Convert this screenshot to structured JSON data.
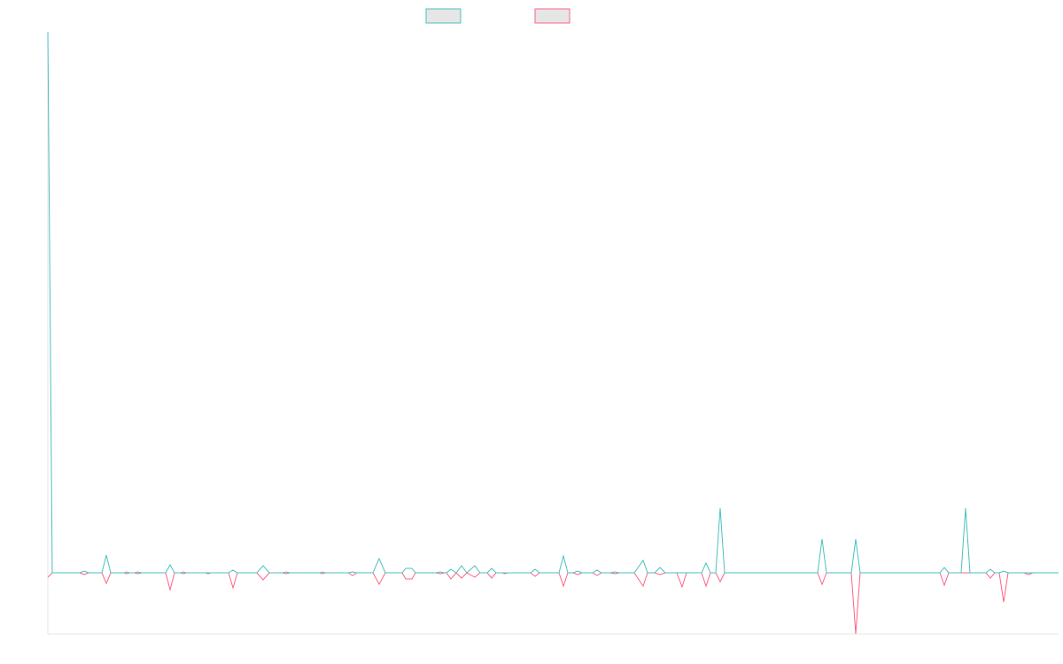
{
  "chart_data": {
    "type": "line",
    "x": [
      0,
      5,
      36,
      41,
      46,
      61,
      66,
      71,
      86,
      89,
      92,
      98,
      101,
      106,
      133,
      138,
      143,
      150,
      153,
      156,
      178,
      181,
      184,
      204,
      209,
      214,
      236,
      243,
      250,
      265,
      269,
      273,
      307,
      310,
      313,
      339,
      344,
      349,
      367,
      374,
      381,
      400,
      404,
      411,
      415,
      438,
      443,
      448,
      450,
      455,
      461,
      467,
      473,
      482,
      488,
      496,
      501,
      506,
      513,
      516,
      519,
      545,
      550,
      555,
      577,
      582,
      587,
      593,
      598,
      603,
      615,
      620,
      625,
      635,
      640,
      645,
      662,
      672,
      677,
      685,
      691,
      697,
      710,
      716,
      721,
      738,
      743,
      748,
      754,
      759,
      764,
      869,
      874,
      879,
      907,
      912,
      917,
      1007,
      1012,
      1017,
      1031,
      1036,
      1041,
      1059,
      1064,
      1069,
      1074,
      1079,
      1084,
      1102,
      1107,
      1112,
      1141
    ],
    "series": [
      {
        "color": "#4bc0c0",
        "values": [
          611,
          0,
          0,
          2,
          0,
          0,
          20,
          0,
          0,
          1,
          0,
          0,
          1,
          0,
          0,
          9,
          0,
          0,
          1,
          0,
          0,
          0,
          0,
          0,
          3,
          0,
          0,
          8,
          0,
          0,
          1,
          0,
          0,
          1,
          0,
          0,
          1,
          0,
          0,
          16,
          0,
          0,
          5,
          5,
          0,
          0,
          1,
          0,
          0,
          4,
          0,
          8,
          0,
          8,
          0,
          0,
          5,
          0,
          0,
          0,
          0,
          0,
          4,
          0,
          0,
          19,
          0,
          0,
          2,
          0,
          0,
          3,
          0,
          0,
          1,
          0,
          0,
          14,
          0,
          0,
          6,
          0,
          0,
          0,
          0,
          0,
          11,
          0,
          0,
          73,
          0,
          0,
          38,
          0,
          0,
          38,
          0,
          0,
          6,
          0,
          0,
          73,
          0,
          0,
          4,
          0,
          0,
          2,
          0,
          0,
          0,
          0,
          0
        ]
      },
      {
        "color": "#ff6384",
        "values": [
          -5,
          0,
          0,
          -2,
          0,
          0,
          -12,
          0,
          0,
          -1,
          0,
          0,
          -1,
          0,
          0,
          -19,
          0,
          0,
          -1,
          0,
          0,
          -1,
          0,
          0,
          -17,
          0,
          0,
          -8,
          0,
          0,
          -1,
          0,
          0,
          -1,
          0,
          0,
          -3,
          0,
          0,
          -13,
          0,
          0,
          -7,
          -7,
          0,
          0,
          -1,
          0,
          0,
          -7,
          0,
          -6,
          0,
          -5,
          0,
          0,
          -6,
          0,
          0,
          -1,
          0,
          0,
          -4,
          0,
          0,
          -15,
          0,
          0,
          -2,
          0,
          0,
          -3,
          0,
          0,
          -1,
          0,
          0,
          -15,
          0,
          0,
          -2,
          0,
          0,
          -16,
          0,
          0,
          -15,
          0,
          0,
          -10,
          0,
          0,
          -13,
          0,
          0,
          -69,
          0,
          0,
          -14,
          0,
          0,
          0,
          0,
          0,
          -6,
          0,
          0,
          -33,
          0,
          0,
          -2,
          0,
          0
        ]
      }
    ],
    "xlim": [
      0,
      1141
    ],
    "ylim": [
      -69,
      611
    ]
  }
}
